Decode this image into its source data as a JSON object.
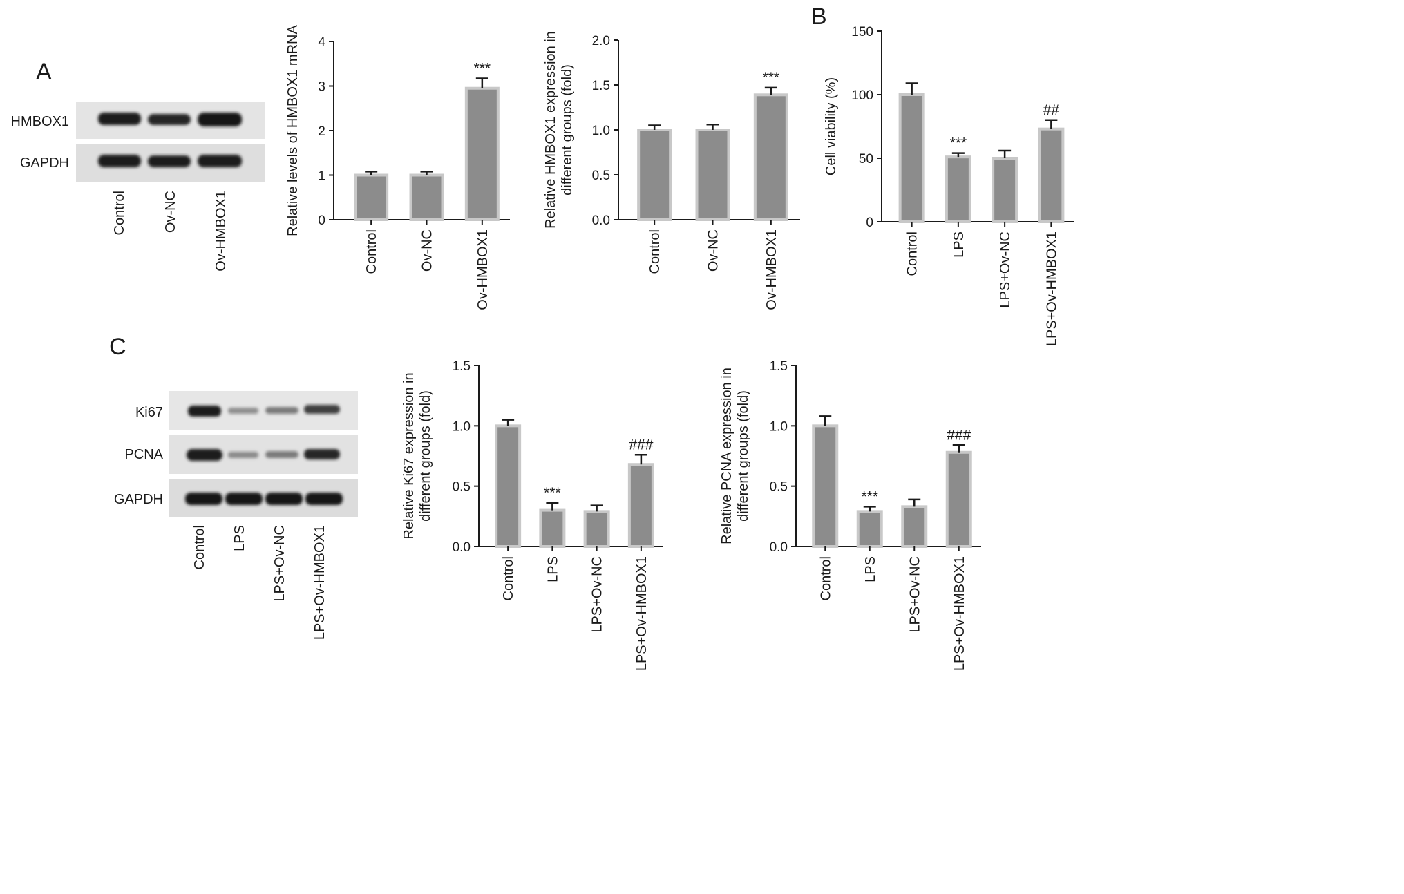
{
  "panels": {
    "a": "A",
    "b": "B",
    "c": "C"
  },
  "western_blots": [
    {
      "id": "blot-a",
      "rows": [
        "HMBOX1",
        "GAPDH"
      ],
      "lanes": [
        "Control",
        "Ov-NC",
        "Ov-HMBOX1"
      ]
    },
    {
      "id": "blot-c",
      "rows": [
        "Ki67",
        "PCNA",
        "GAPDH"
      ],
      "lanes": [
        "Control",
        "LPS",
        "LPS+Ov-NC",
        "LPS+Ov-HMBOX1"
      ]
    }
  ],
  "style": {
    "bar_fill": "#8c8c8c",
    "bar_stroke": "#c8c8c8",
    "axis_color": "#1a1a1a"
  },
  "chart_data": [
    {
      "id": "mrna",
      "type": "bar",
      "categories": [
        "Control",
        "Ov-NC",
        "Ov-HMBOX1"
      ],
      "values": [
        1.0,
        1.0,
        2.95
      ],
      "errors": [
        0.08,
        0.08,
        0.22
      ],
      "significance": [
        "",
        "",
        "***"
      ],
      "ylabel": "Relative levels of HMBOX1 mRNA",
      "ylim": [
        0,
        4
      ],
      "yticks": [
        "0",
        "1",
        "2",
        "3",
        "4"
      ]
    },
    {
      "id": "hmbox1-protein",
      "type": "bar",
      "categories": [
        "Control",
        "Ov-NC",
        "Ov-HMBOX1"
      ],
      "values": [
        1.0,
        1.0,
        1.39
      ],
      "errors": [
        0.05,
        0.06,
        0.08
      ],
      "significance": [
        "",
        "",
        "***"
      ],
      "ylabel": [
        "Relative HMBOX1 expression in",
        "different groups (fold)"
      ],
      "ylim": [
        0,
        2.0
      ],
      "yticks": [
        "0.0",
        "0.5",
        "1.0",
        "1.5",
        "2.0"
      ]
    },
    {
      "id": "viability",
      "type": "bar",
      "categories": [
        "Control",
        "LPS",
        "LPS+Ov-NC",
        "LPS+Ov-HMBOX1"
      ],
      "values": [
        100,
        51,
        50,
        73
      ],
      "errors": [
        9,
        3,
        6,
        7
      ],
      "significance": [
        "",
        "***",
        "",
        "##"
      ],
      "ylabel": "Cell viability (%)",
      "ylim": [
        0,
        150
      ],
      "yticks": [
        "0",
        "50",
        "100",
        "150"
      ]
    },
    {
      "id": "ki67",
      "type": "bar",
      "categories": [
        "Control",
        "LPS",
        "LPS+Ov-NC",
        "LPS+Ov-HMBOX1"
      ],
      "values": [
        1.0,
        0.3,
        0.29,
        0.68
      ],
      "errors": [
        0.05,
        0.06,
        0.05,
        0.08
      ],
      "significance": [
        "",
        "***",
        "",
        "###"
      ],
      "ylabel": [
        "Relative Ki67 expression in",
        "different groups (fold)"
      ],
      "ylim": [
        0,
        1.5
      ],
      "yticks": [
        "0.0",
        "0.5",
        "1.0",
        "1.5"
      ]
    },
    {
      "id": "pcna",
      "type": "bar",
      "categories": [
        "Control",
        "LPS",
        "LPS+Ov-NC",
        "LPS+Ov-HMBOX1"
      ],
      "values": [
        1.0,
        0.29,
        0.33,
        0.78
      ],
      "errors": [
        0.08,
        0.04,
        0.06,
        0.06
      ],
      "significance": [
        "",
        "***",
        "",
        "###"
      ],
      "ylabel": [
        "Relative PCNA expression in",
        "different groups (fold)"
      ],
      "ylim": [
        0,
        1.5
      ],
      "yticks": [
        "0.0",
        "0.5",
        "1.0",
        "1.5"
      ]
    }
  ]
}
